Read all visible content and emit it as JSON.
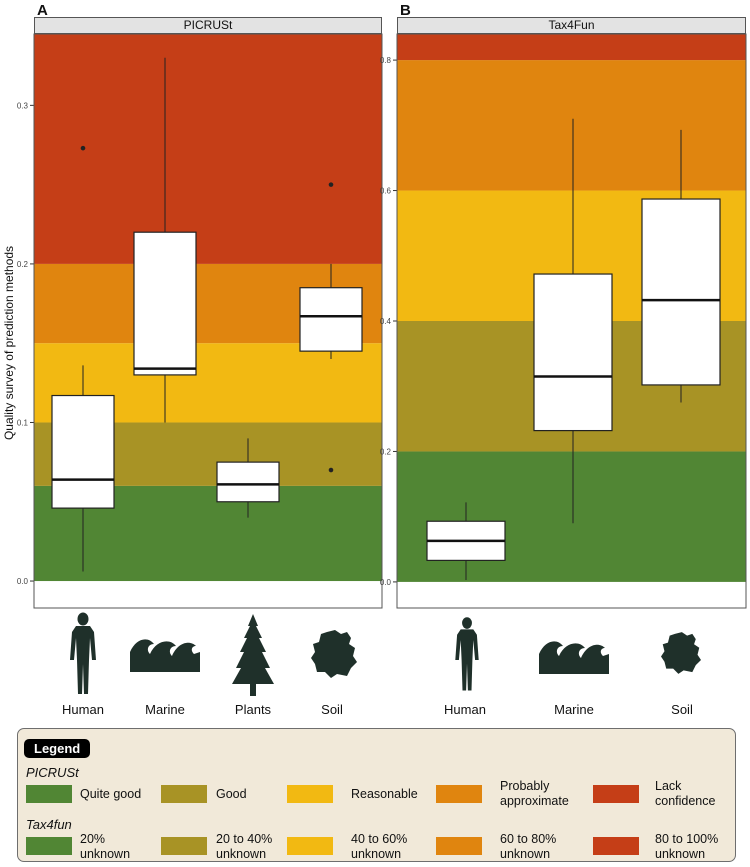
{
  "figure": {
    "ylabel": "Quality survey of prediction methods",
    "colors": {
      "quite_good": "#518634",
      "good": "#a89325",
      "reasonable": "#f2b912",
      "probably_approximate": "#e0850f",
      "lack_confidence": "#c53e17",
      "box_fill": "#ffffff",
      "icon": "#1f302a"
    },
    "panels": [
      {
        "letter": "A",
        "strip": "PICRUSt"
      },
      {
        "letter": "B",
        "strip": "Tax4Fun"
      }
    ]
  },
  "chart_data": [
    {
      "type": "box",
      "title": "PICRUSt",
      "ylabel": "Quality survey of prediction methods",
      "ylim": [
        -0.017,
        0.345
      ],
      "yticks": [
        "0.0",
        "0.1",
        "0.2",
        "0.3"
      ],
      "bands": [
        {
          "from": 0.0,
          "to": 0.06,
          "category": "quite_good"
        },
        {
          "from": 0.06,
          "to": 0.1,
          "category": "good"
        },
        {
          "from": 0.1,
          "to": 0.15,
          "category": "reasonable"
        },
        {
          "from": 0.15,
          "to": 0.2,
          "category": "probably_approximate"
        },
        {
          "from": 0.2,
          "to": 0.345,
          "category": "lack_confidence"
        }
      ],
      "categories": [
        "Human",
        "Marine",
        "Plants",
        "Soil"
      ],
      "boxes": [
        {
          "category": "Human",
          "whisker_low": 0.006,
          "q1": 0.046,
          "median": 0.064,
          "q3": 0.117,
          "whisker_high": 0.136,
          "outliers": [
            0.273
          ]
        },
        {
          "category": "Marine",
          "whisker_low": 0.1,
          "q1": 0.13,
          "median": 0.134,
          "q3": 0.22,
          "whisker_high": 0.33,
          "outliers": []
        },
        {
          "category": "Plants",
          "whisker_low": 0.04,
          "q1": 0.05,
          "median": 0.061,
          "q3": 0.075,
          "whisker_high": 0.09,
          "outliers": []
        },
        {
          "category": "Soil",
          "whisker_low": 0.14,
          "q1": 0.145,
          "median": 0.167,
          "q3": 0.185,
          "whisker_high": 0.2,
          "outliers": [
            0.25,
            0.07
          ]
        }
      ]
    },
    {
      "type": "box",
      "title": "Tax4Fun",
      "ylim": [
        -0.04,
        0.84
      ],
      "yticks": [
        "0.0",
        "0.2",
        "0.4",
        "0.6",
        "0.8"
      ],
      "bands": [
        {
          "from": 0.0,
          "to": 0.2,
          "category": "quite_good"
        },
        {
          "from": 0.2,
          "to": 0.4,
          "category": "good"
        },
        {
          "from": 0.4,
          "to": 0.6,
          "category": "reasonable"
        },
        {
          "from": 0.6,
          "to": 0.8,
          "category": "probably_approximate"
        },
        {
          "from": 0.8,
          "to": 0.84,
          "category": "lack_confidence"
        }
      ],
      "categories": [
        "Human",
        "Marine",
        "Soil"
      ],
      "boxes": [
        {
          "category": "Human",
          "whisker_low": 0.003,
          "q1": 0.033,
          "median": 0.063,
          "q3": 0.093,
          "whisker_high": 0.122,
          "outliers": []
        },
        {
          "category": "Marine",
          "whisker_low": 0.09,
          "q1": 0.232,
          "median": 0.315,
          "q3": 0.472,
          "whisker_high": 0.71,
          "outliers": []
        },
        {
          "category": "Soil",
          "whisker_low": 0.275,
          "q1": 0.302,
          "median": 0.432,
          "q3": 0.587,
          "whisker_high": 0.693,
          "outliers": []
        }
      ]
    }
  ],
  "legend": {
    "title": "Legend",
    "groups": [
      {
        "name": "PICRUSt",
        "items": [
          {
            "label": "Quite good",
            "color": "#518634"
          },
          {
            "label": "Good",
            "color": "#a89325"
          },
          {
            "label": "Reasonable",
            "color": "#f2b912"
          },
          {
            "label": "Probably approximate",
            "color": "#e0850f"
          },
          {
            "label": "Lack confidence",
            "color": "#c53e17"
          }
        ]
      },
      {
        "name": "Tax4fun",
        "items": [
          {
            "label": "20% unknown",
            "color": "#518634"
          },
          {
            "label": "20 to 40% unknown",
            "color": "#a89325"
          },
          {
            "label": "40 to 60% unknown",
            "color": "#f2b912"
          },
          {
            "label": "60 to 80% unknown",
            "color": "#e0850f"
          },
          {
            "label": "80 to 100% unknown",
            "color": "#c53e17"
          }
        ]
      }
    ]
  }
}
